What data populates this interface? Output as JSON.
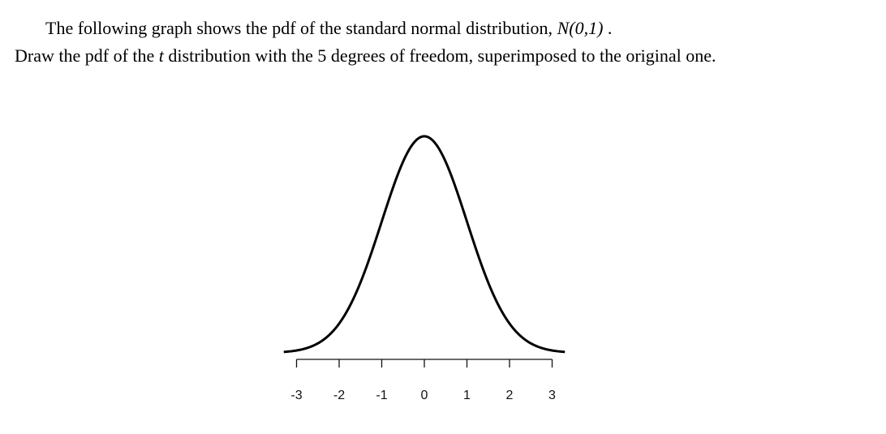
{
  "question": {
    "line1_prefix": "The following graph shows the pdf of the standard normal distribution, ",
    "line1_math": "N(0,1)",
    "line1_suffix": " .",
    "line2_prefix": "Draw the pdf of the ",
    "line2_italic": "t",
    "line2_suffix": " distribution with the 5 degrees of freedom, superimposed to the original one."
  },
  "chart_data": {
    "type": "line",
    "series": [
      {
        "name": "",
        "function": "standard normal pdf"
      }
    ],
    "xlim": [
      -3.3,
      3.3
    ],
    "x_ticks": [
      -3,
      -2,
      -1,
      0,
      1,
      2,
      3
    ],
    "x_tick_labels": [
      "-3",
      "-2",
      "-1",
      "0",
      "1",
      "2",
      "3"
    ],
    "grid": false,
    "title": "",
    "xlabel": "",
    "ylabel": ""
  }
}
